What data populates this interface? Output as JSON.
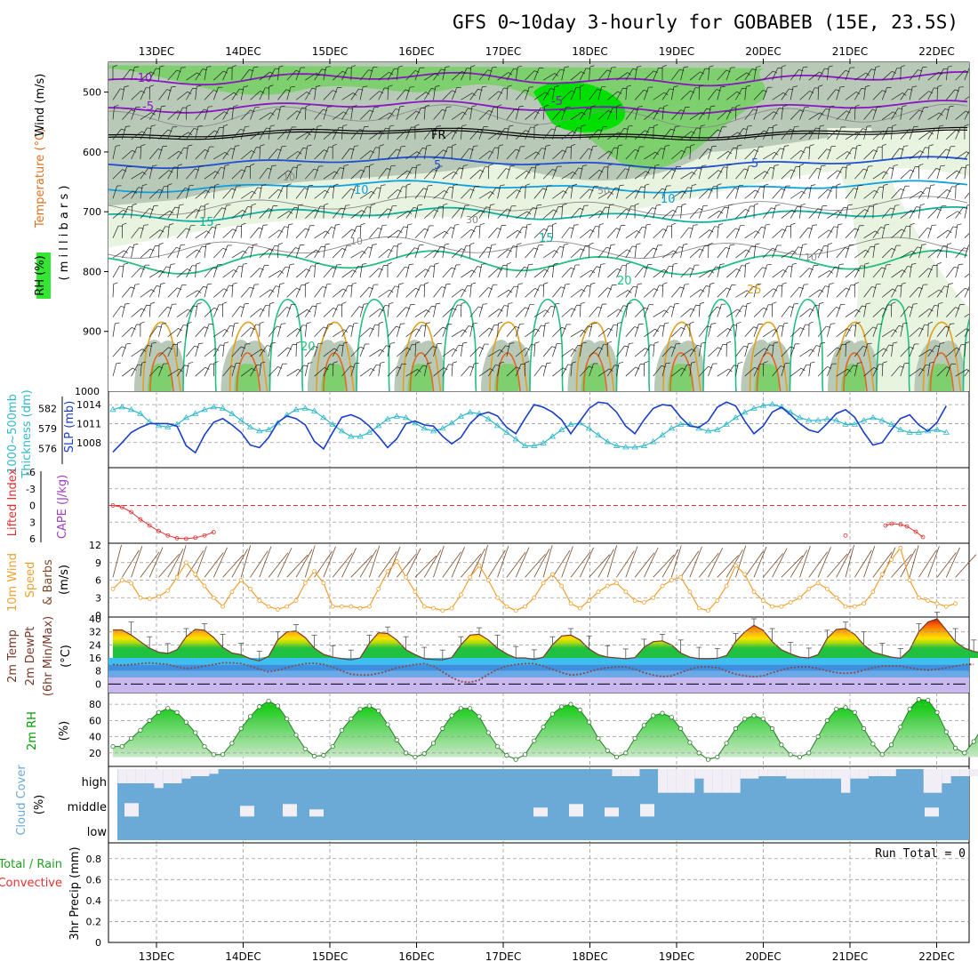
{
  "chart_data": {
    "type": "meteogram",
    "title": "GFS 0~10day 3-hourly for GOBABEB (15E, 23.5S)",
    "dates": [
      "13DEC",
      "14DEC",
      "15DEC",
      "16DEC",
      "17DEC",
      "18DEC",
      "19DEC",
      "20DEC",
      "21DEC",
      "22DEC"
    ],
    "panels": [
      {
        "id": "upper",
        "ylabels": [
          "RH (%)",
          "Temperature (°C)",
          "Wind (m/s)"
        ],
        "ylabel2": "( m i l l i b a r s )",
        "yticks": [
          "500",
          "600",
          "700",
          "800",
          "900"
        ],
        "ylim": [
          450,
          1000
        ],
        "temperature_contours": [
          "-10",
          "-5",
          "5",
          "10",
          "15",
          "20",
          "25",
          "FR"
        ],
        "rh_contours": [
          "10",
          "30",
          "50"
        ]
      },
      {
        "id": "thickness_slp",
        "ylabels": [
          "1000~500mb",
          "Thickness (dm)",
          "SLP (mb)"
        ],
        "yticks_left": [
          "582",
          "579",
          "576"
        ],
        "yticks_right": [
          "1014",
          "1011",
          "1008"
        ],
        "top_label": "1000",
        "slp_mb": [
          1006.5,
          1008,
          1009.6,
          1010.4,
          1011,
          1011,
          1011,
          1010.6,
          1007.5,
          1006.4,
          1009.2,
          1011.2,
          1011.8,
          1010.8,
          1009.6,
          1007.6,
          1007.2,
          1008.8,
          1011.2,
          1012.2,
          1011.8,
          1010.8,
          1008.2,
          1007,
          1009.6,
          1012,
          1012.4,
          1011.8,
          1010.6,
          1009,
          1007.2,
          1008.6,
          1011,
          1011.4,
          1010.8,
          1010.6,
          1009,
          1007.8,
          1008.8,
          1011,
          1012.4,
          1012.8,
          1012.2,
          1010.4,
          1009.4,
          1011.8,
          1014,
          1013.6,
          1012.8,
          1011.6,
          1009.4,
          1011.4,
          1013.4,
          1014.4,
          1014.2,
          1012.8,
          1010.6,
          1009.4,
          1011.6,
          1013.4,
          1014,
          1013.8,
          1012,
          1010.6,
          1010.4,
          1011.4,
          1013.6,
          1014.4,
          1013.8,
          1011.4,
          1009.4,
          1010.6,
          1012.8,
          1013.6,
          1012.4,
          1011,
          1010,
          1009.6,
          1011,
          1012.6,
          1013.2,
          1012,
          1009.6,
          1007.6,
          1008,
          1010,
          1011.8,
          1012.4,
          1010.8,
          1009.8,
          1011.2,
          1013.8
        ],
        "thickness_dm": [
          581.8,
          582.2,
          581.8,
          581.2,
          580,
          579.4,
          579.2,
          579.6,
          580.6,
          581.2,
          581.8,
          582.2,
          582,
          581.2,
          580.2,
          579.2,
          578.6,
          578.8,
          579.8,
          581,
          581.8,
          582,
          581.6,
          580.6,
          579.6,
          578.6,
          577.8,
          577.8,
          578.4,
          579.4,
          580.4,
          580.8,
          580.6,
          579.8,
          579,
          578.6,
          579,
          579.8,
          580.8,
          581.4,
          581.2,
          580.4,
          579.4,
          578.4,
          577.4,
          576.4,
          576.4,
          576.8,
          577.8,
          578.8,
          579.6,
          579.8,
          579,
          578,
          577,
          576.4,
          576.2,
          576.2,
          576.4,
          577,
          578,
          579,
          579.6,
          579.6,
          579,
          578.6,
          578.8,
          579.6,
          580.6,
          581.4,
          582,
          582.4,
          582.6,
          582.2,
          581.4,
          580.6,
          580.2,
          580.2,
          580.4,
          580.2,
          579.6,
          579.6,
          580.2,
          580.6,
          580.2,
          579.6,
          578.8,
          578.4,
          578.4,
          578.6,
          578.8,
          578.4
        ]
      },
      {
        "id": "cape_li",
        "ylabels": [
          "Lifted Index",
          "CAPE (J/kg)"
        ],
        "yticks": [
          "-6",
          "-3",
          "0",
          "3",
          "6"
        ],
        "lifted_index": [
          0,
          0.3,
          1.2,
          2.5,
          3.6,
          4.6,
          5.4,
          5.9,
          6,
          5.8,
          5.4,
          4.8,
          null,
          null,
          null,
          null,
          null,
          null,
          null,
          null,
          null,
          null,
          null,
          null,
          null,
          null,
          null,
          null,
          null,
          null,
          null,
          null,
          null,
          null,
          null,
          null,
          null,
          null,
          null,
          null,
          null,
          null,
          null,
          null,
          null,
          null,
          null,
          null,
          null,
          null,
          null,
          null,
          null,
          null,
          null,
          null,
          null,
          null,
          null,
          null,
          null,
          null,
          null,
          null,
          null,
          null,
          null,
          null,
          null,
          null,
          null,
          null,
          null,
          null,
          null,
          null,
          null,
          null,
          null,
          null,
          5.4,
          null,
          null,
          null,
          null,
          null,
          null,
          null,
          null,
          null,
          null,
          null
        ]
      },
      {
        "id": "wind10m",
        "ylabels": [
          "10m Wind",
          "Speed",
          "(m/s)",
          "& Barbs"
        ],
        "yticks": [
          "12",
          "9",
          "6",
          "3",
          "0"
        ],
        "wind_speed_ms": [
          4.5,
          6,
          5.5,
          3,
          2.8,
          3.2,
          4.2,
          6.5,
          9,
          7,
          5,
          3,
          1.5,
          4,
          6,
          4.5,
          2.5,
          1.5,
          1,
          1.5,
          2.5,
          5.5,
          7.5,
          5.5,
          1.5,
          1.5,
          1.5,
          1.2,
          1.5,
          4.5,
          7.5,
          9.2,
          6.5,
          4,
          1.5,
          1.2,
          0.8,
          1.2,
          3.5,
          6.5,
          8.5,
          6,
          3,
          1.5,
          0.8,
          1.5,
          3,
          5.5,
          7,
          5,
          2,
          1.2,
          2.5,
          4,
          5,
          5.5,
          4,
          2.5,
          2.2,
          3,
          5,
          6,
          6.5,
          4,
          1.2,
          0.8,
          2.5,
          5,
          8.5,
          7,
          4,
          2.5,
          1.5,
          1.5,
          2.2,
          3,
          4.5,
          5.5,
          4.5,
          3,
          1.5,
          1.5,
          2,
          4,
          7,
          9.5,
          11.5,
          6,
          3,
          2.5,
          2,
          1.5,
          2
        ]
      },
      {
        "id": "temp2m",
        "ylabels": [
          "2m Temp",
          "2m DewPt",
          "(6hr Min/Max)",
          "(°C)"
        ],
        "yticks": [
          "40",
          "32",
          "24",
          "16",
          "8",
          "0"
        ],
        "temperature_c": [
          33.2,
          33.2,
          30,
          26,
          22,
          19.5,
          18.8,
          21,
          29,
          33.5,
          33,
          28.5,
          22.5,
          19,
          18,
          15.5,
          14.2,
          17,
          27,
          32,
          32.5,
          28.5,
          22,
          18.2,
          16.5,
          15.5,
          14.8,
          16,
          25,
          31.5,
          31,
          27,
          21,
          18,
          15.5,
          15,
          14.8,
          16.2,
          24,
          30,
          30.5,
          27,
          22,
          18.5,
          16,
          16,
          15,
          16.5,
          24,
          29.5,
          30,
          27,
          21.5,
          18,
          16.5,
          16,
          15.5,
          16.2,
          22.5,
          26,
          26.5,
          24,
          19,
          16.5,
          15.5,
          15.5,
          15.8,
          17.5,
          26,
          32,
          36,
          33,
          26,
          21,
          18.5,
          16.5,
          16,
          18,
          28,
          33.5,
          34,
          30.5,
          24,
          19.5,
          18,
          16.5,
          15.8,
          21,
          32,
          38,
          40,
          33,
          26,
          22,
          20,
          19,
          19.5
        ],
        "dewpoint_c": [
          12,
          11.5,
          12,
          12.5,
          13,
          12.5,
          12,
          10.5,
          9.5,
          10,
          11,
          12,
          13,
          13,
          12.5,
          11,
          9,
          7.5,
          8.5,
          10,
          11.5,
          12.5,
          12.8,
          12,
          10.5,
          8,
          6,
          5.5,
          5.5,
          6.5,
          8,
          10,
          11,
          12,
          12.5,
          11,
          7.5,
          4,
          1.5,
          1,
          2.5,
          6,
          9,
          11,
          12,
          12.5,
          12.5,
          11,
          9,
          7,
          5.5,
          6,
          7.5,
          9,
          10,
          10.5,
          10.5,
          9,
          7,
          5.5,
          4.5,
          5,
          7,
          9,
          10.5,
          10.5,
          10,
          8,
          6,
          5,
          4.5,
          5,
          7,
          8.5,
          10,
          10.5,
          10.5,
          9.5,
          8,
          7,
          6.5,
          7,
          8.5,
          10,
          11,
          11,
          11,
          10,
          9,
          8.5,
          9,
          10,
          11,
          12,
          12
        ]
      },
      {
        "id": "rh2m",
        "ylabels": [
          "2m RH",
          "(%)"
        ],
        "yticks": [
          "80",
          "60",
          "40",
          "20"
        ],
        "rh_pct": [
          28,
          28,
          38,
          48,
          60,
          70,
          75,
          70,
          58,
          45,
          28,
          18,
          18,
          32,
          50,
          65,
          77,
          84,
          78,
          62,
          42,
          25,
          16,
          17,
          28,
          48,
          62,
          74,
          78,
          72,
          55,
          36,
          20,
          15,
          19,
          32,
          50,
          66,
          75,
          75,
          65,
          45,
          28,
          17,
          12,
          18,
          35,
          52,
          68,
          77,
          80,
          73,
          58,
          38,
          23,
          15,
          20,
          38,
          54,
          66,
          69,
          64,
          50,
          33,
          20,
          12,
          15,
          32,
          50,
          62,
          66,
          62,
          50,
          30,
          18,
          15,
          20,
          40,
          60,
          74,
          76,
          70,
          50,
          31,
          18,
          30,
          52,
          74,
          86,
          85,
          70,
          46,
          26,
          20,
          34,
          53,
          70
        ]
      },
      {
        "id": "cloud",
        "ylabels": [
          "Cloud Cover",
          "(%)"
        ],
        "levels": [
          "high",
          "middle",
          "low"
        ],
        "high_clear_pct": [
          0,
          60,
          60,
          60,
          60,
          80,
          60,
          60,
          40,
          30,
          30,
          20,
          0,
          0,
          0,
          0,
          0,
          0,
          0,
          0,
          0,
          0,
          0,
          0,
          0,
          0,
          0,
          0,
          0,
          0,
          0,
          0,
          0,
          0,
          0,
          0,
          0,
          0,
          0,
          0,
          0,
          0,
          0,
          0,
          0,
          0,
          0,
          0,
          0,
          0,
          0,
          0,
          0,
          0,
          0,
          30,
          30,
          30,
          0,
          0,
          100,
          100,
          100,
          100,
          40,
          100,
          100,
          100,
          100,
          40,
          40,
          30,
          30,
          30,
          40,
          40,
          40,
          40,
          40,
          40,
          100,
          40,
          40,
          30,
          30,
          30,
          0,
          0,
          0,
          100,
          100,
          60,
          30,
          30,
          30,
          40,
          40,
          40,
          100,
          60,
          100
        ]
      },
      {
        "id": "precip",
        "ylabels": [
          "Total / Rain",
          "Convective",
          "3hr Precip (mm)"
        ],
        "yticks": [
          "0.8",
          "0.6",
          "0.4",
          "0.2",
          "0"
        ],
        "annotation": "Run Total = 0"
      }
    ]
  },
  "colors": {
    "rh_light": "#e8f3e0",
    "rh_mid": "#b8c9b8",
    "rh_dark": "#7ecf6e",
    "rh_vivid": "#00e000",
    "temp_cold": "#8a17c0",
    "temp_fr": "#000000",
    "temp_5": "#2050d0",
    "temp_10": "#10a0e0",
    "temp_15": "#10b0a0",
    "temp_20": "#20c080",
    "temp_25": "#e0a020",
    "slp": "#1a3ec8",
    "thickness": "#30b8c8",
    "lifted_index": "#e03030",
    "wind": "#f0a030",
    "rh2m": "#00c000",
    "cloud": "#6baad6",
    "cloud_clear": "#f2eef6"
  }
}
